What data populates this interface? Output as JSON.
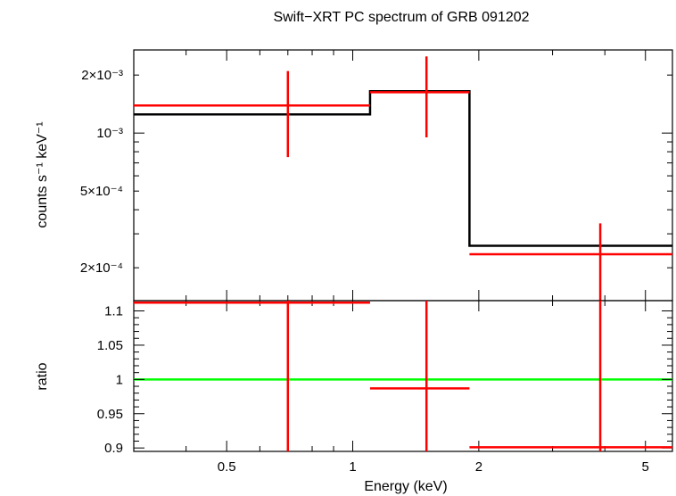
{
  "chart_data": [
    {
      "type": "step",
      "title": "Swift−XRT PC spectrum of GRB 091202",
      "ylabel": "counts s⁻¹ keV⁻¹",
      "xlabel": "",
      "xscale": "log",
      "yscale": "log",
      "xlim": [
        0.3,
        5.8
      ],
      "ylim": [
        0.000135,
        0.0027
      ],
      "yticks": [
        {
          "value": 0.0002,
          "label": "2×10⁻⁴"
        },
        {
          "value": 0.0005,
          "label": "5×10⁻⁴"
        },
        {
          "value": 0.001,
          "label": "10⁻³"
        },
        {
          "value": 0.002,
          "label": "2×10⁻³"
        }
      ],
      "model": [
        {
          "x0": 0.3,
          "x1": 1.1,
          "y": 0.00125
        },
        {
          "x0": 1.1,
          "x1": 1.9,
          "y": 0.00165
        },
        {
          "x0": 1.9,
          "x1": 5.8,
          "y": 0.00026
        }
      ],
      "data": [
        {
          "x": 0.7,
          "xlo": 0.3,
          "xhi": 1.1,
          "y": 0.00139,
          "ylo": 0.00075,
          "yhi": 0.0021
        },
        {
          "x": 1.5,
          "xlo": 1.1,
          "xhi": 1.9,
          "y": 0.00163,
          "ylo": 0.00095,
          "yhi": 0.0025
        },
        {
          "x": 3.9,
          "xlo": 1.9,
          "xhi": 5.8,
          "y": 0.000235,
          "ylo": 0.000135,
          "yhi": 0.00034
        }
      ],
      "colors": {
        "model": "#000000",
        "data": "#ff0000"
      }
    },
    {
      "type": "ratio",
      "ylabel": "ratio",
      "xlabel": "Energy (keV)",
      "xscale": "log",
      "xlim": [
        0.3,
        5.8
      ],
      "ylim": [
        0.895,
        1.115
      ],
      "yticks": [
        {
          "value": 0.9,
          "label": "0.9"
        },
        {
          "value": 0.95,
          "label": "0.95"
        },
        {
          "value": 1,
          "label": "1"
        },
        {
          "value": 1.05,
          "label": "1.05"
        },
        {
          "value": 1.1,
          "label": "1.1"
        }
      ],
      "xticks": [
        {
          "value": 0.5,
          "label": "0.5"
        },
        {
          "value": 1,
          "label": "1"
        },
        {
          "value": 2,
          "label": "2"
        },
        {
          "value": 5,
          "label": "5"
        }
      ],
      "reference": 1,
      "data": [
        {
          "x": 0.7,
          "xlo": 0.3,
          "xhi": 1.1,
          "y": 1.112,
          "ylo": 0.895,
          "yhi": 1.115
        },
        {
          "x": 1.5,
          "xlo": 1.1,
          "xhi": 1.9,
          "y": 0.987,
          "ylo": 0.895,
          "yhi": 1.115
        },
        {
          "x": 3.9,
          "xlo": 1.9,
          "xhi": 5.8,
          "y": 0.901,
          "ylo": 0.895,
          "yhi": 1.115
        }
      ],
      "colors": {
        "reference": "#00ff00",
        "data": "#ff0000"
      }
    }
  ]
}
